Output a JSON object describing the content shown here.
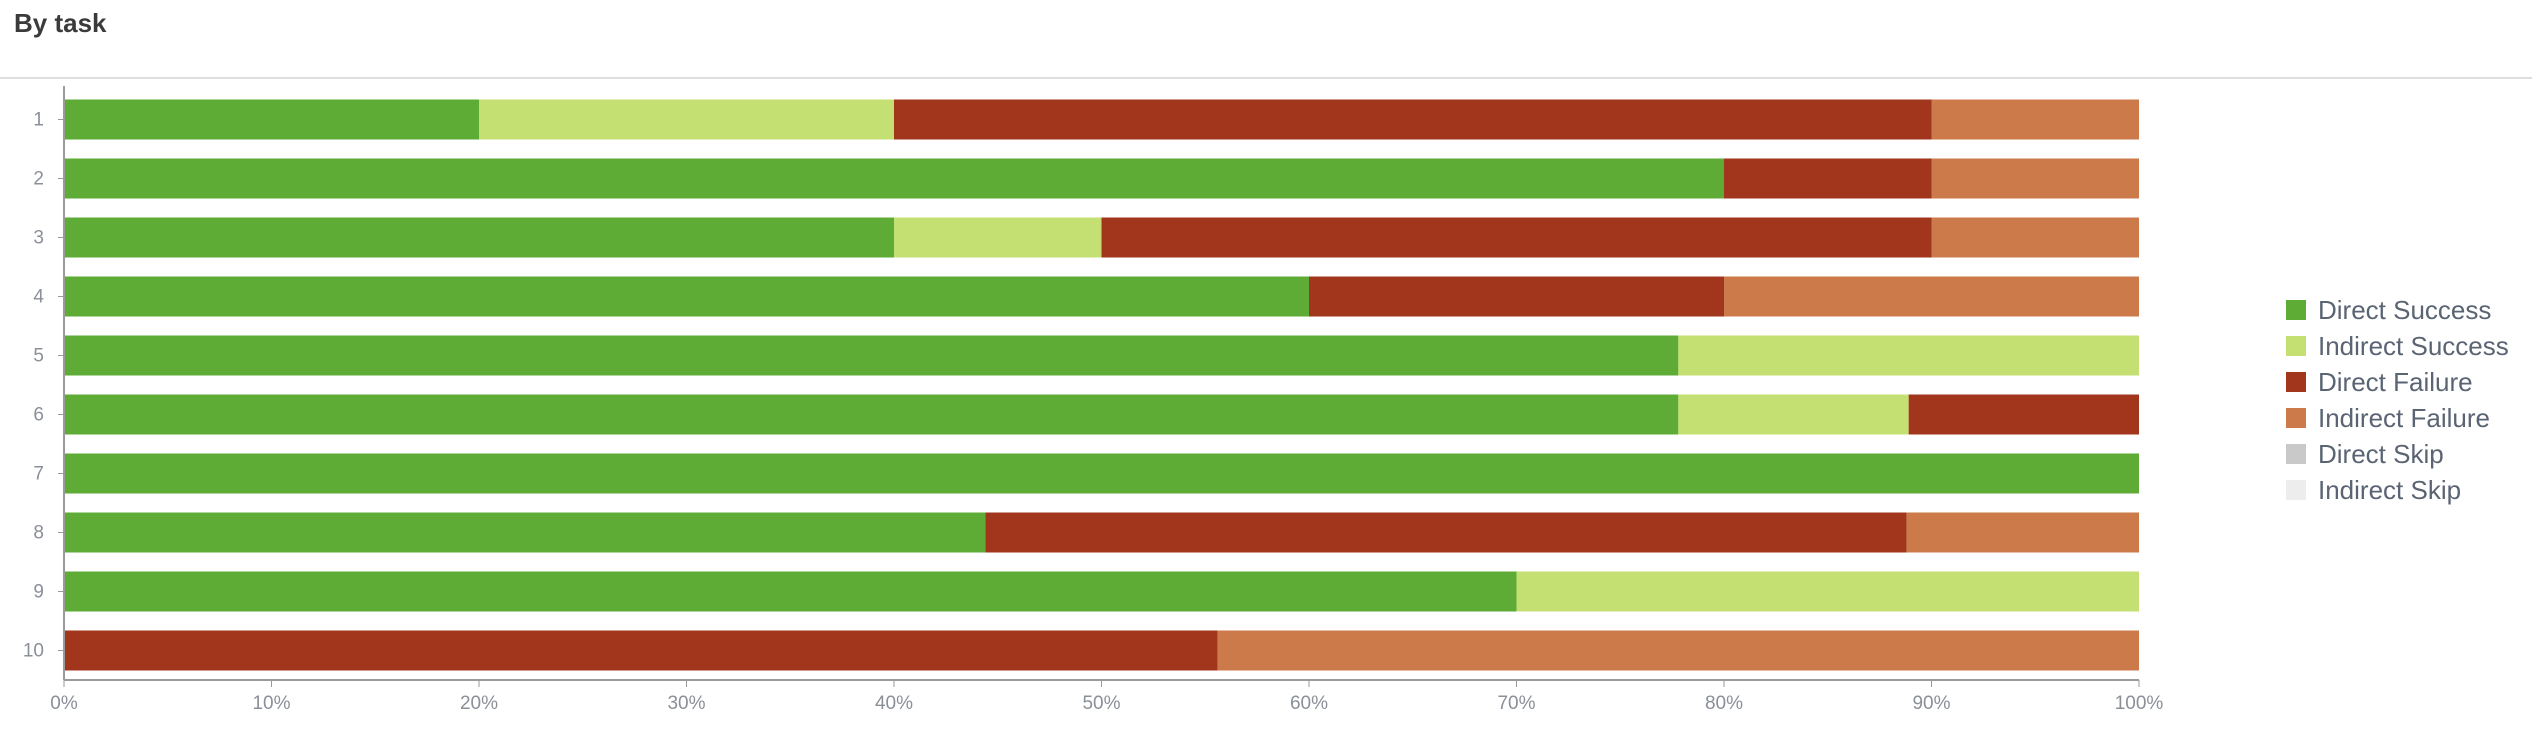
{
  "header": {
    "title": "By task"
  },
  "chart_data": {
    "type": "bar",
    "orientation": "horizontal",
    "stacked": true,
    "title": "",
    "xlabel": "",
    "ylabel": "",
    "xlim": [
      0,
      100
    ],
    "x_ticks": [
      "0%",
      "10%",
      "20%",
      "30%",
      "40%",
      "50%",
      "60%",
      "70%",
      "80%",
      "90%",
      "100%"
    ],
    "grid": false,
    "legend_position": "right",
    "categories": [
      "1",
      "2",
      "3",
      "4",
      "5",
      "6",
      "7",
      "8",
      "9",
      "10"
    ],
    "series": [
      {
        "name": "Direct Success",
        "color": "#5eac36",
        "values": [
          20,
          80,
          40,
          60,
          77.8,
          77.8,
          100,
          44.4,
          70,
          0
        ]
      },
      {
        "name": "Indirect Success",
        "color": "#c4e072",
        "values": [
          20,
          0,
          10,
          0,
          22.2,
          11.1,
          0,
          0,
          30,
          0
        ]
      },
      {
        "name": "Direct Failure",
        "color": "#a2361c",
        "values": [
          50,
          10,
          40,
          20,
          0,
          11.1,
          0,
          44.4,
          0,
          55.6
        ]
      },
      {
        "name": "Indirect Failure",
        "color": "#cc7a49",
        "values": [
          10,
          10,
          10,
          20,
          0,
          0,
          0,
          11.2,
          0,
          44.4
        ]
      },
      {
        "name": "Direct Skip",
        "color": "#c9c9c9",
        "values": [
          0,
          0,
          0,
          0,
          0,
          0,
          0,
          0,
          0,
          0
        ]
      },
      {
        "name": "Indirect Skip",
        "color": "#ededed",
        "values": [
          0,
          0,
          0,
          0,
          0,
          0,
          0,
          0,
          0,
          0
        ]
      }
    ]
  }
}
